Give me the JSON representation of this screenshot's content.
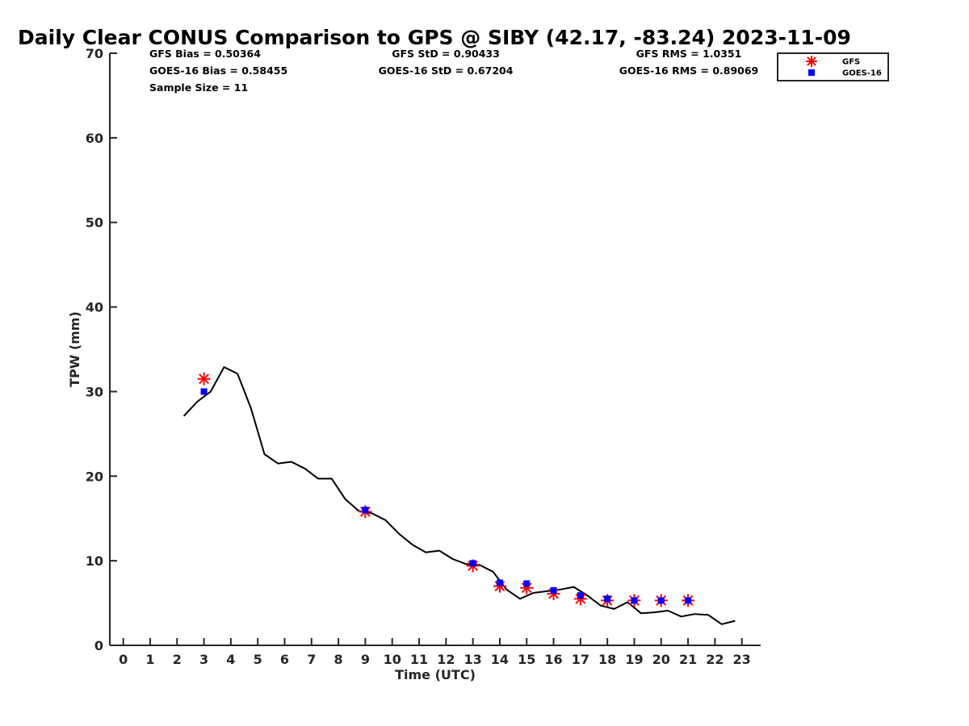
{
  "chart_data": {
    "type": "line",
    "title": "Daily Clear CONUS Comparison to GPS @ SIBY (42.17, -83.24) 2023-11-09",
    "xlabel": "Time (UTC)",
    "ylabel": "TPW (mm)",
    "xlim": [
      -0.5,
      23.7
    ],
    "ylim": [
      0,
      70
    ],
    "xticks": [
      0,
      1,
      2,
      3,
      4,
      5,
      6,
      7,
      8,
      9,
      10,
      11,
      12,
      13,
      14,
      15,
      16,
      17,
      18,
      19,
      20,
      21,
      22,
      23
    ],
    "yticks": [
      0,
      10,
      20,
      30,
      40,
      50,
      60,
      70
    ],
    "grid": false,
    "legend_position": "top-right",
    "stats": [
      [
        "GFS Bias = 0.50364",
        "GFS StD = 0.90433",
        "GFS RMS = 1.0351"
      ],
      [
        "GOES-16 Bias = 0.58455",
        "GOES-16 StD = 0.67204",
        "GOES-16 RMS = 0.89069"
      ],
      [
        "Sample Size = 11",
        "",
        ""
      ]
    ],
    "series": [
      {
        "style": "line",
        "color": "#000000",
        "x": [
          2.25,
          2.75,
          3.25,
          3.75,
          4.25,
          4.75,
          5.25,
          5.75,
          6.25,
          6.75,
          7.25,
          7.75,
          8.25,
          8.75,
          9.25,
          9.75,
          10.25,
          10.75,
          11.25,
          11.75,
          12.25,
          12.75,
          13.25,
          13.75,
          14.25,
          14.75,
          15.25,
          15.75,
          16.25,
          16.75,
          17.25,
          17.75,
          18.25,
          18.75,
          19.25,
          19.75,
          20.25,
          20.75,
          21.25,
          21.75,
          22.25,
          22.75
        ],
        "y": [
          27.1,
          28.8,
          30.0,
          32.9,
          32.1,
          28.0,
          22.6,
          21.5,
          21.7,
          20.9,
          19.7,
          19.7,
          17.3,
          15.9,
          15.6,
          14.8,
          13.2,
          11.9,
          11.0,
          11.2,
          10.2,
          9.6,
          9.5,
          8.7,
          6.6,
          5.5,
          6.2,
          6.4,
          6.6,
          6.9,
          5.9,
          4.7,
          4.3,
          5.1,
          3.8,
          3.9,
          4.1,
          3.4,
          3.7,
          3.6,
          2.5,
          2.9
        ]
      },
      {
        "name": "GFS",
        "style": "asterisk",
        "color": "#ff0000",
        "x": [
          3,
          9,
          13,
          14,
          15,
          16,
          17,
          18,
          19,
          20,
          21
        ],
        "y": [
          31.5,
          15.8,
          9.4,
          7.0,
          6.8,
          6.1,
          5.5,
          5.3,
          5.3,
          5.3,
          5.3
        ]
      },
      {
        "name": "GOES-16",
        "style": "square",
        "color": "#0000ff",
        "x": [
          3,
          9,
          13,
          14,
          15,
          16,
          17,
          18,
          19,
          20,
          21
        ],
        "y": [
          30.0,
          16.0,
          9.7,
          7.4,
          7.3,
          6.5,
          5.9,
          5.5,
          5.3,
          5.3,
          5.3
        ]
      }
    ]
  }
}
